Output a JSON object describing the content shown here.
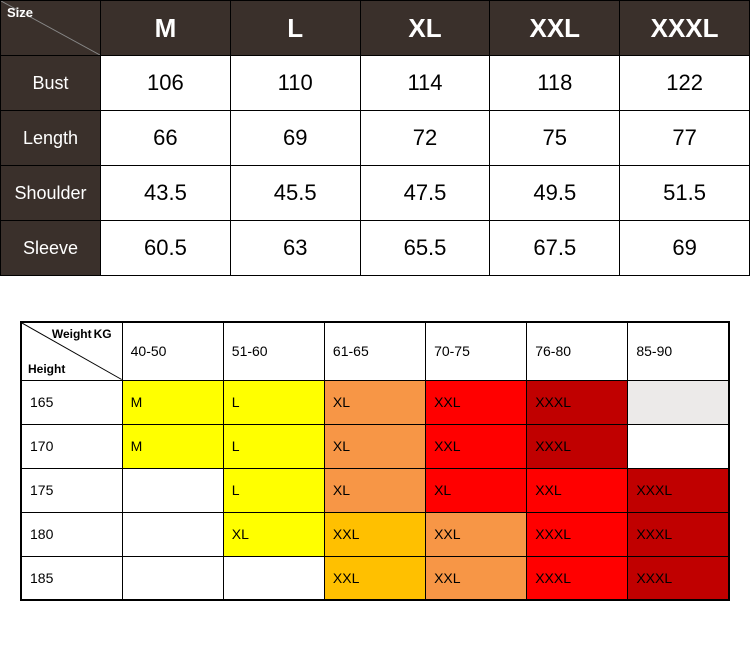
{
  "table1": {
    "corner_label": "Size",
    "col_width_first": 100,
    "header_bg": "#3a302b",
    "header_fg": "#ffffff",
    "cell_bg": "#ffffff",
    "sizes": [
      "M",
      "L",
      "XL",
      "XXL",
      "XXXL"
    ],
    "rows": [
      {
        "label": "Bust",
        "values": [
          "106",
          "110",
          "114",
          "118",
          "122"
        ]
      },
      {
        "label": "Length",
        "values": [
          "66",
          "69",
          "72",
          "75",
          "77"
        ]
      },
      {
        "label": "Shoulder",
        "values": [
          "43.5",
          "45.5",
          "47.5",
          "49.5",
          "51.5"
        ]
      },
      {
        "label": "Sleeve",
        "values": [
          "60.5",
          "63",
          "65.5",
          "67.5",
          "69"
        ]
      }
    ]
  },
  "table2": {
    "corner_weight_label": "Weight",
    "corner_weight_unit": "KG",
    "corner_height_label": "Height",
    "weights": [
      "40-50",
      "51-60",
      "61-65",
      "70-75",
      "76-80",
      "85-90"
    ],
    "heights": [
      "165",
      "170",
      "175",
      "180",
      "185"
    ],
    "palette": {
      "none": "#ffffff",
      "grey": "#eceae9",
      "yellow": "#ffff00",
      "lorange": "#ffc000",
      "orange": "#f79646",
      "red": "#ff0000",
      "dred": "#c00000"
    },
    "cells": [
      [
        {
          "v": "M",
          "c": "yellow"
        },
        {
          "v": "L",
          "c": "yellow"
        },
        {
          "v": "XL",
          "c": "orange"
        },
        {
          "v": "XXL",
          "c": "red"
        },
        {
          "v": "XXXL",
          "c": "dred"
        },
        {
          "v": "",
          "c": "grey"
        }
      ],
      [
        {
          "v": "M",
          "c": "yellow"
        },
        {
          "v": "L",
          "c": "yellow"
        },
        {
          "v": "XL",
          "c": "orange"
        },
        {
          "v": "XXL",
          "c": "red"
        },
        {
          "v": "XXXL",
          "c": "dred"
        },
        {
          "v": "",
          "c": "none"
        }
      ],
      [
        {
          "v": "",
          "c": "none"
        },
        {
          "v": "L",
          "c": "yellow"
        },
        {
          "v": "XL",
          "c": "orange"
        },
        {
          "v": "XL",
          "c": "red"
        },
        {
          "v": "XXL",
          "c": "red"
        },
        {
          "v": "XXXL",
          "c": "dred"
        }
      ],
      [
        {
          "v": "",
          "c": "none"
        },
        {
          "v": "XL",
          "c": "yellow"
        },
        {
          "v": "XXL",
          "c": "lorange"
        },
        {
          "v": "XXL",
          "c": "orange"
        },
        {
          "v": "XXXL",
          "c": "red"
        },
        {
          "v": "XXXL",
          "c": "dred"
        }
      ],
      [
        {
          "v": "",
          "c": "none"
        },
        {
          "v": "",
          "c": "none"
        },
        {
          "v": "XXL",
          "c": "lorange"
        },
        {
          "v": "XXL",
          "c": "orange"
        },
        {
          "v": "XXXL",
          "c": "red"
        },
        {
          "v": "XXXL",
          "c": "dred"
        }
      ]
    ]
  }
}
